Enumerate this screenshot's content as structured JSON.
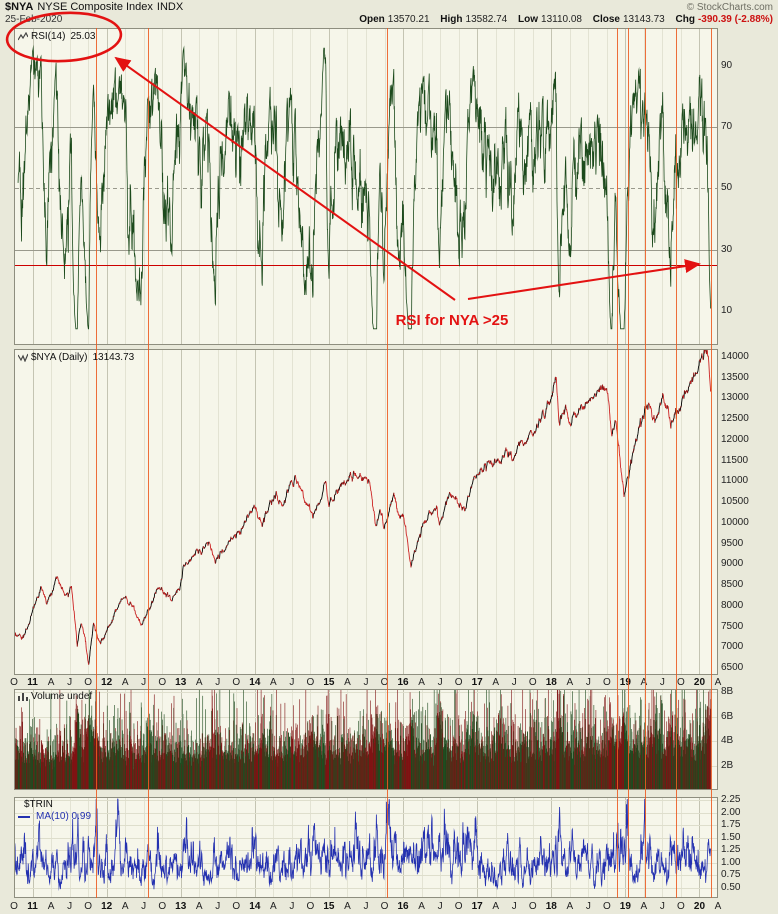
{
  "header": {
    "symbol": "$NYA",
    "name": "NYSE Composite Index",
    "exchange": "INDX",
    "credit": "© StockCharts.com",
    "date": "25-Feb-2020",
    "quote": [
      {
        "label": "Open",
        "value": "13570.21"
      },
      {
        "label": "High",
        "value": "13582.74"
      },
      {
        "label": "Low",
        "value": "13110.08"
      },
      {
        "label": "Close",
        "value": "13143.73"
      },
      {
        "label": "Chg",
        "value": "-390.39 (-2.88%)"
      }
    ]
  },
  "annotation": {
    "text": "RSI for NYA >25",
    "color": "#E31212"
  },
  "axis": {
    "months_total": 114,
    "last_month": 112.8,
    "start": "Oct-2010",
    "tick_labels": [
      "O",
      "11",
      "A",
      "J",
      "O",
      "12",
      "A",
      "J",
      "O",
      "13",
      "A",
      "J",
      "O",
      "14",
      "A",
      "J",
      "O",
      "15",
      "A",
      "J",
      "O",
      "16",
      "A",
      "J",
      "O",
      "17",
      "A",
      "J",
      "O",
      "18",
      "A",
      "J",
      "O",
      "19",
      "A",
      "J",
      "O",
      "20",
      "A"
    ]
  },
  "event_lines": {
    "color": "#EC5B21",
    "months": [
      13.3,
      21.7,
      60.4,
      97.6,
      99.4,
      102.2,
      107.2,
      112.9
    ]
  },
  "chart_data": [
    {
      "id": "rsi",
      "type": "line",
      "label": "RSI(14)",
      "value": "25.03",
      "last": 25.03,
      "period": 14,
      "color": "#1C4A1C",
      "derived": "Wilder RSI(14) of $NYA daily close",
      "ylim": [
        -1.31,
        102.62
      ],
      "yticks": [
        {
          "v": 90,
          "label": "90"
        },
        {
          "v": 70,
          "label": "70"
        },
        {
          "v": 50,
          "label": "50"
        },
        {
          "v": 30,
          "label": "30"
        },
        {
          "v": 10,
          "label": "10"
        }
      ],
      "hlines": [
        {
          "v": 70,
          "color": "#99998C"
        },
        {
          "v": 50,
          "color": "#99998C",
          "dash": true
        },
        {
          "v": 30,
          "color": "#99998C"
        },
        {
          "v": 25,
          "color": "#CC0000"
        }
      ]
    },
    {
      "id": "price",
      "type": "line",
      "label": "$NYA (Daily)",
      "value": "13143.73",
      "last": 13143.73,
      "up_color": "#000000",
      "down_color": "#CC2222",
      "ylim": [
        6331,
        14193
      ],
      "yticks": [
        {
          "v": 14000,
          "label": "14000"
        },
        {
          "v": 13500,
          "label": "13500"
        },
        {
          "v": 13000,
          "label": "13000"
        },
        {
          "v": 12500,
          "label": "12500"
        },
        {
          "v": 12000,
          "label": "12000"
        },
        {
          "v": 11500,
          "label": "11500"
        },
        {
          "v": 11000,
          "label": "11000"
        },
        {
          "v": 10500,
          "label": "10500"
        },
        {
          "v": 10000,
          "label": "10000"
        },
        {
          "v": 9500,
          "label": "9500"
        },
        {
          "v": 9000,
          "label": "9000"
        },
        {
          "v": 8500,
          "label": "8500"
        },
        {
          "v": 8000,
          "label": "8000"
        },
        {
          "v": 7500,
          "label": "7500"
        },
        {
          "v": 7000,
          "label": "7000"
        },
        {
          "v": 6500,
          "label": "6500"
        }
      ],
      "anchors": [
        [
          0,
          7250
        ],
        [
          1.2,
          7200
        ],
        [
          2.5,
          7650
        ],
        [
          4.5,
          8400
        ],
        [
          5.3,
          8100
        ],
        [
          7,
          8650
        ],
        [
          8.6,
          8200
        ],
        [
          9.3,
          8500
        ],
        [
          10.25,
          7100
        ],
        [
          10.9,
          7600
        ],
        [
          11.5,
          7200
        ],
        [
          12.1,
          6520
        ],
        [
          12.9,
          7600
        ],
        [
          13.85,
          7060
        ],
        [
          14.9,
          7350
        ],
        [
          15.5,
          7550
        ],
        [
          17.8,
          8250
        ],
        [
          19,
          8000
        ],
        [
          20.6,
          7490
        ],
        [
          22,
          8000
        ],
        [
          23.5,
          8480
        ],
        [
          25.3,
          8050
        ],
        [
          26.8,
          8440
        ],
        [
          27.5,
          8950
        ],
        [
          29,
          9200
        ],
        [
          31.6,
          9500
        ],
        [
          32.6,
          9060
        ],
        [
          34,
          9350
        ],
        [
          35.5,
          9700
        ],
        [
          37,
          9900
        ],
        [
          38.8,
          10400
        ],
        [
          40.2,
          9950
        ],
        [
          42,
          10600
        ],
        [
          43.5,
          10500
        ],
        [
          45.5,
          11100
        ],
        [
          47,
          10700
        ],
        [
          48.4,
          10150
        ],
        [
          50.5,
          10900
        ],
        [
          50.9,
          10550
        ],
        [
          51.5,
          10450
        ],
        [
          53,
          10950
        ],
        [
          55.5,
          11240
        ],
        [
          57.5,
          11000
        ],
        [
          58.6,
          9950
        ],
        [
          59.3,
          10250
        ],
        [
          59.9,
          9900
        ],
        [
          61.5,
          10650
        ],
        [
          62.5,
          10250
        ],
        [
          63.2,
          10050
        ],
        [
          64.3,
          8950
        ],
        [
          66,
          9900
        ],
        [
          68.5,
          10450
        ],
        [
          68.9,
          9960
        ],
        [
          70.5,
          10700
        ],
        [
          73.2,
          10350
        ],
        [
          74.5,
          11150
        ],
        [
          75.5,
          11250
        ],
        [
          78,
          11500
        ],
        [
          81,
          11700
        ],
        [
          84,
          12200
        ],
        [
          86.8,
          12850
        ],
        [
          87.8,
          13600
        ],
        [
          88.3,
          12420
        ],
        [
          89.3,
          12800
        ],
        [
          90.2,
          12500
        ],
        [
          92.5,
          12900
        ],
        [
          95,
          13150
        ],
        [
          96.1,
          13200
        ],
        [
          96.8,
          12150
        ],
        [
          97.4,
          12500
        ],
        [
          98.8,
          10750
        ],
        [
          100.5,
          11900
        ],
        [
          102.5,
          12900
        ],
        [
          103.8,
          12480
        ],
        [
          105,
          13020
        ],
        [
          106.3,
          12400
        ],
        [
          108,
          12950
        ],
        [
          109.5,
          13300
        ],
        [
          111,
          13800
        ],
        [
          112.45,
          14180
        ],
        [
          112.8,
          13144
        ]
      ]
    },
    {
      "id": "volume",
      "type": "bar",
      "label": "Volume undef",
      "up_color": "#1E4A1E",
      "down_color": "#7E1212",
      "base_billions": 3.0,
      "ylim": [
        0,
        8.245
      ],
      "yticks": [
        {
          "v": 8,
          "label": "8B"
        },
        {
          "v": 6,
          "label": "6B"
        },
        {
          "v": 4,
          "label": "4B"
        },
        {
          "v": 2,
          "label": "2B"
        }
      ],
      "spikes": [
        [
          10.3,
          3.2
        ],
        [
          12.1,
          2.0
        ],
        [
          13.3,
          1.4
        ],
        [
          16.9,
          1.2
        ],
        [
          21.7,
          1.1
        ],
        [
          31.6,
          0.9
        ],
        [
          40.2,
          1.0
        ],
        [
          48.4,
          1.4
        ],
        [
          58.6,
          2.4
        ],
        [
          60.4,
          1.2
        ],
        [
          64.3,
          2.2
        ],
        [
          68.9,
          3.0
        ],
        [
          74.3,
          1.5
        ],
        [
          78.7,
          2.0
        ],
        [
          88.3,
          2.6
        ],
        [
          93,
          1.1
        ],
        [
          96.8,
          1.7
        ],
        [
          98.8,
          2.4
        ],
        [
          103.8,
          1.0
        ],
        [
          106.3,
          1.2
        ],
        [
          112.6,
          2.1
        ]
      ]
    },
    {
      "id": "trin",
      "type": "line",
      "label": "$TRIN",
      "ma_label": "MA(10) 0.99",
      "last_ma": 0.99,
      "mean": 1.0,
      "color": "#2431B0",
      "ylim": [
        0.29,
        2.31
      ],
      "yticks": [
        {
          "v": 2.25,
          "label": "2.25"
        },
        {
          "v": 2.0,
          "label": "2.00"
        },
        {
          "v": 1.75,
          "label": "1.75"
        },
        {
          "v": 1.5,
          "label": "1.50"
        },
        {
          "v": 1.25,
          "label": "1.25"
        },
        {
          "v": 1.0,
          "label": "1.00"
        },
        {
          "v": 0.75,
          "label": "0.75"
        },
        {
          "v": 0.5,
          "label": "0.50"
        }
      ],
      "spikes": [
        [
          10.3,
          0.7
        ],
        [
          12.1,
          0.55
        ],
        [
          13.3,
          1.2
        ],
        [
          16.9,
          0.9
        ],
        [
          21.7,
          0.5
        ],
        [
          26,
          0.4
        ],
        [
          34.5,
          0.35
        ],
        [
          40.2,
          0.45
        ],
        [
          48.4,
          0.5
        ],
        [
          53.5,
          0.35
        ],
        [
          58.6,
          0.55
        ],
        [
          60.4,
          1.0
        ],
        [
          64.3,
          0.5
        ],
        [
          68.9,
          0.45
        ],
        [
          74,
          0.35
        ],
        [
          80,
          0.3
        ],
        [
          88.3,
          0.5
        ],
        [
          93.5,
          0.35
        ],
        [
          96.8,
          0.45
        ],
        [
          98.8,
          0.5
        ],
        [
          102.2,
          0.4
        ],
        [
          106.3,
          0.45
        ],
        [
          109,
          0.35
        ],
        [
          112.6,
          0.55
        ]
      ]
    }
  ]
}
